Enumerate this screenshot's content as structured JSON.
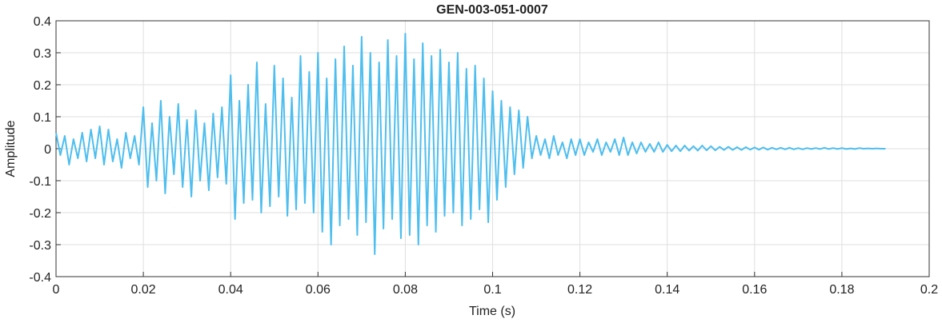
{
  "chart_data": {
    "type": "line",
    "title": "GEN-003-051-0007",
    "xlabel": "Time (s)",
    "ylabel": "Amplitude",
    "color": "#4dbeee",
    "grid": true,
    "xlim": [
      0,
      0.2
    ],
    "ylim": [
      -0.4,
      0.4
    ],
    "xticks": [
      0,
      0.02,
      0.04,
      0.06,
      0.08,
      0.1,
      0.12,
      0.14,
      0.16,
      0.18,
      0.2
    ],
    "yticks": [
      -0.4,
      -0.3,
      -0.2,
      -0.1,
      0,
      0.1,
      0.2,
      0.3,
      0.4
    ],
    "x": [
      0,
      0.001,
      0.002,
      0.003,
      0.004,
      0.005,
      0.006,
      0.007,
      0.008,
      0.009,
      0.01,
      0.011,
      0.012,
      0.013,
      0.014,
      0.015,
      0.016,
      0.017,
      0.018,
      0.019,
      0.02,
      0.021,
      0.022,
      0.023,
      0.024,
      0.025,
      0.026,
      0.027,
      0.028,
      0.029,
      0.03,
      0.031,
      0.032,
      0.033,
      0.034,
      0.035,
      0.036,
      0.037,
      0.038,
      0.039,
      0.04,
      0.041,
      0.042,
      0.043,
      0.044,
      0.045,
      0.046,
      0.047,
      0.048,
      0.049,
      0.05,
      0.051,
      0.052,
      0.053,
      0.054,
      0.055,
      0.056,
      0.057,
      0.058,
      0.059,
      0.06,
      0.061,
      0.062,
      0.063,
      0.064,
      0.065,
      0.066,
      0.067,
      0.068,
      0.069,
      0.07,
      0.071,
      0.072,
      0.073,
      0.074,
      0.075,
      0.076,
      0.077,
      0.078,
      0.079,
      0.08,
      0.081,
      0.082,
      0.083,
      0.084,
      0.085,
      0.086,
      0.087,
      0.088,
      0.089,
      0.09,
      0.091,
      0.092,
      0.093,
      0.094,
      0.095,
      0.096,
      0.097,
      0.098,
      0.099,
      0.1,
      0.101,
      0.102,
      0.103,
      0.104,
      0.105,
      0.106,
      0.107,
      0.108,
      0.109,
      0.11,
      0.111,
      0.112,
      0.113,
      0.114,
      0.115,
      0.116,
      0.117,
      0.118,
      0.119,
      0.12,
      0.121,
      0.122,
      0.123,
      0.124,
      0.125,
      0.126,
      0.127,
      0.128,
      0.129,
      0.13,
      0.131,
      0.132,
      0.133,
      0.134,
      0.135,
      0.136,
      0.137,
      0.138,
      0.139,
      0.14,
      0.141,
      0.142,
      0.143,
      0.144,
      0.145,
      0.146,
      0.147,
      0.148,
      0.149,
      0.15,
      0.151,
      0.152,
      0.153,
      0.154,
      0.155,
      0.156,
      0.157,
      0.158,
      0.159,
      0.16,
      0.161,
      0.162,
      0.163,
      0.164,
      0.165,
      0.166,
      0.167,
      0.168,
      0.169,
      0.17,
      0.171,
      0.172,
      0.173,
      0.174,
      0.175,
      0.176,
      0.177,
      0.178,
      0.179,
      0.18,
      0.181,
      0.182,
      0.183,
      0.184,
      0.185,
      0.186,
      0.187,
      0.188,
      0.189,
      0.19
    ],
    "values": [
      0.05,
      -0.02,
      0.04,
      -0.05,
      0.03,
      -0.03,
      0.05,
      -0.04,
      0.06,
      -0.03,
      0.07,
      -0.05,
      0.06,
      -0.04,
      0.03,
      -0.06,
      0.05,
      -0.03,
      0.04,
      -0.05,
      0.13,
      -0.12,
      0.08,
      -0.1,
      0.15,
      -0.14,
      0.1,
      -0.08,
      0.14,
      -0.12,
      0.09,
      -0.15,
      0.12,
      -0.1,
      0.08,
      -0.13,
      0.11,
      -0.09,
      0.13,
      -0.11,
      0.23,
      -0.22,
      0.15,
      -0.17,
      0.2,
      -0.16,
      0.27,
      -0.2,
      0.14,
      -0.18,
      0.26,
      -0.15,
      0.22,
      -0.21,
      0.16,
      -0.19,
      0.29,
      -0.17,
      0.24,
      -0.2,
      0.3,
      -0.26,
      0.22,
      -0.3,
      0.28,
      -0.24,
      0.32,
      -0.22,
      0.26,
      -0.27,
      0.35,
      -0.23,
      0.3,
      -0.33,
      0.27,
      -0.25,
      0.34,
      -0.22,
      0.29,
      -0.28,
      0.36,
      -0.27,
      0.28,
      -0.3,
      0.33,
      -0.24,
      0.29,
      -0.26,
      0.31,
      -0.21,
      0.27,
      -0.2,
      0.3,
      -0.24,
      0.25,
      -0.22,
      0.26,
      -0.19,
      0.22,
      -0.23,
      0.18,
      -0.16,
      0.15,
      -0.12,
      0.13,
      -0.08,
      0.12,
      -0.06,
      0.1,
      -0.03,
      0.04,
      -0.02,
      0.03,
      -0.03,
      0.04,
      -0.02,
      0.02,
      -0.03,
      0.03,
      -0.02,
      0.03,
      -0.02,
      0.02,
      -0.01,
      0.03,
      -0.02,
      0.02,
      -0.01,
      0.03,
      -0.02,
      0.035,
      -0.02,
      0.02,
      -0.015,
      0.02,
      -0.01,
      0.015,
      -0.01,
      0.02,
      -0.01,
      0.012,
      -0.008,
      0.01,
      -0.008,
      0.01,
      -0.006,
      0.008,
      -0.006,
      0.01,
      -0.005,
      0.008,
      -0.005,
      0.006,
      -0.004,
      0.006,
      -0.004,
      0.005,
      -0.004,
      0.005,
      -0.003,
      0.004,
      -0.003,
      0.004,
      -0.003,
      0.003,
      -0.002,
      0.003,
      -0.002,
      0.003,
      -0.002,
      0.002,
      -0.002,
      0.002,
      -0.001,
      0.002,
      -0.001,
      0.003,
      -0.001,
      0.002,
      -0.001,
      0.002,
      -0.001,
      0.001,
      -0.001,
      0.002,
      0,
      0.001,
      0,
      0.001,
      0,
      0
    ]
  }
}
